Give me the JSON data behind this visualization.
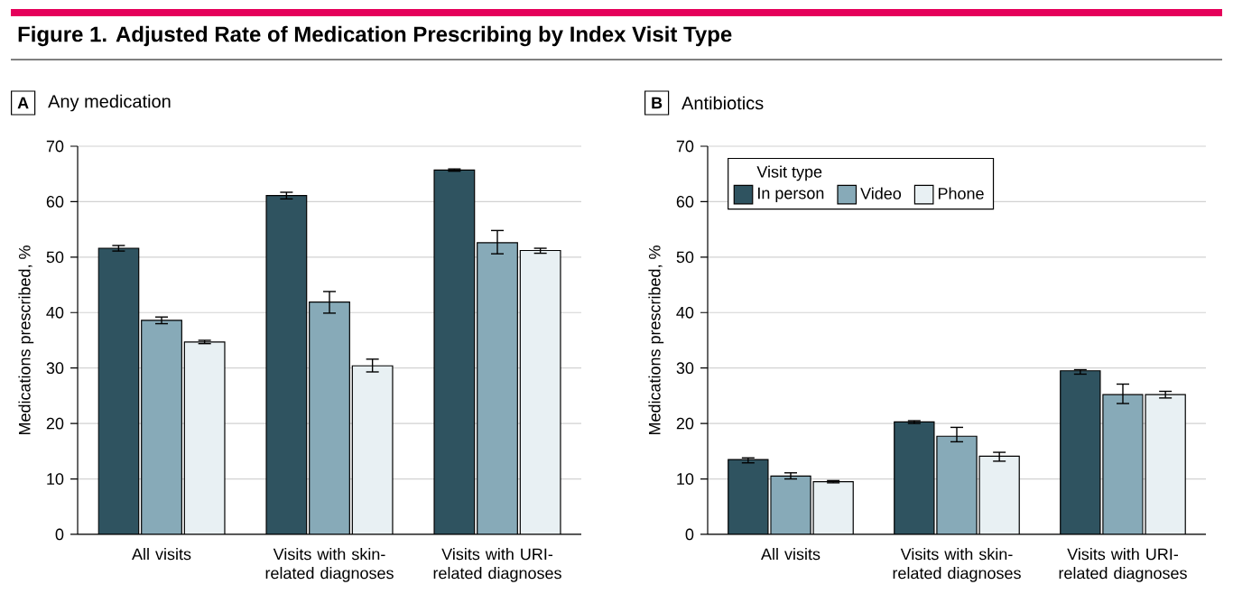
{
  "chart_data": [
    {
      "type": "bar",
      "title": "Any medication",
      "annotations": [
        "Figure 1. Adjusted Rate of Medication Prescribing by Index Visit Type",
        "A"
      ],
      "ylabel": "Medications prescribed, %",
      "categories": [
        "All visits",
        "Visits with skin-related diagnoses",
        "Visits with URI-related diagnoses"
      ],
      "ylim": [
        0,
        70
      ],
      "yticks": [
        0,
        10,
        20,
        30,
        40,
        50,
        60,
        70
      ],
      "grid": "y",
      "legend": false,
      "series": [
        {
          "color": "#2f5360",
          "values": [
            51.6,
            61.1,
            65.7
          ],
          "errors": [
            [
              51.1,
              52.1
            ],
            [
              60.5,
              61.7
            ],
            [
              65.5,
              65.9
            ]
          ]
        },
        {
          "color": "#87aab8",
          "values": [
            38.6,
            41.9,
            52.6
          ],
          "errors": [
            [
              38.0,
              39.2
            ],
            [
              39.9,
              43.8
            ],
            [
              50.6,
              54.8
            ]
          ]
        },
        {
          "color": "#e8f0f3",
          "values": [
            34.7,
            30.4,
            51.2
          ],
          "errors": [
            [
              34.4,
              35.0
            ],
            [
              29.3,
              31.6
            ],
            [
              50.7,
              51.6
            ]
          ]
        }
      ]
    },
    {
      "type": "bar",
      "title": "Antibiotics",
      "annotations": [
        "B"
      ],
      "ylabel": "Medications prescribed, %",
      "categories": [
        "All visits",
        "Visits with skin-related diagnoses",
        "Visits with URI-related diagnoses"
      ],
      "ylim": [
        0,
        70
      ],
      "yticks": [
        0,
        10,
        20,
        30,
        40,
        50,
        60,
        70
      ],
      "grid": "y",
      "legend": "top left",
      "legend_title": "Visit type",
      "series": [
        {
          "name": "In person",
          "color": "#2f5360",
          "values": [
            13.5,
            20.3,
            29.5
          ],
          "errors": [
            [
              12.9,
              13.8
            ],
            [
              20.0,
              20.5
            ],
            [
              28.9,
              29.7
            ]
          ]
        },
        {
          "name": "Video",
          "color": "#87aab8",
          "values": [
            10.5,
            17.7,
            25.2
          ],
          "errors": [
            [
              10.0,
              11.1
            ],
            [
              16.7,
              19.3
            ],
            [
              23.6,
              27.1
            ]
          ]
        },
        {
          "name": "Phone",
          "color": "#e8f0f3",
          "values": [
            9.5,
            14.1,
            25.2
          ],
          "errors": [
            [
              9.3,
              9.7
            ],
            [
              13.2,
              14.8
            ],
            [
              24.6,
              25.8
            ]
          ]
        }
      ]
    }
  ]
}
